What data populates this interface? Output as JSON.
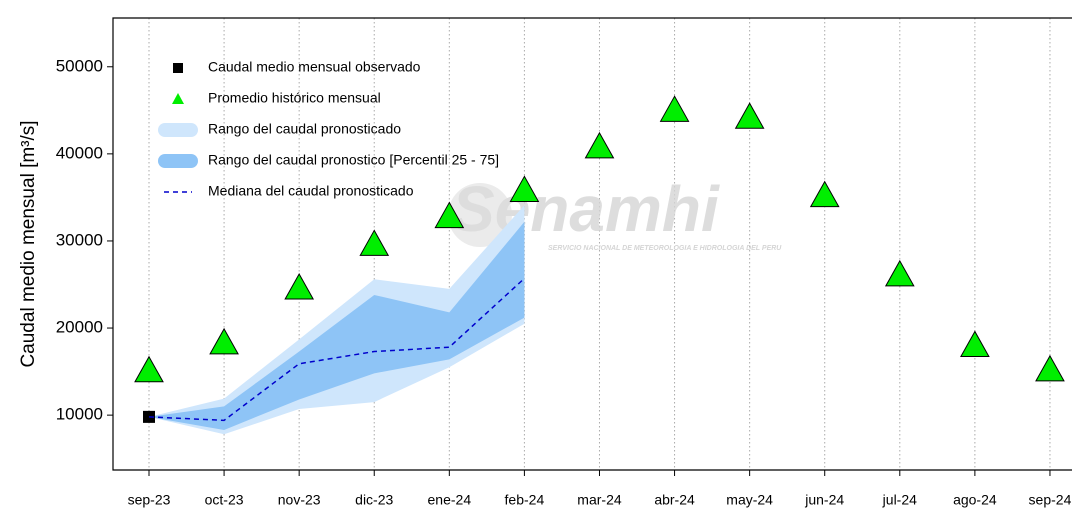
{
  "chart_data": {
    "type": "forecast",
    "ylabel": "Caudal medio mensual  [m³/s]",
    "watermark": "Senamhi",
    "watermark_sub": "SERVICIO NACIONAL DE METEOROLOGIA E HIDROLOGIA DEL PERU",
    "categories": [
      "sep-23",
      "oct-23",
      "nov-23",
      "dic-23",
      "ene-24",
      "feb-24",
      "mar-24",
      "abr-24",
      "may-24",
      "jun-24",
      "jul-24",
      "ago-24",
      "sep-24"
    ],
    "ylim": [
      3700,
      55600
    ],
    "yticks": [
      10000,
      20000,
      30000,
      40000,
      50000
    ],
    "grid": true,
    "bands": [
      {
        "name": "Rango del caudal pronosticado",
        "color": "#cfe6fc",
        "lower": [
          9800,
          7800,
          10700,
          11500,
          15500,
          20500,
          null,
          null,
          null,
          null,
          null,
          null,
          null
        ],
        "upper": [
          9800,
          11900,
          18700,
          25600,
          24500,
          34100,
          null,
          null,
          null,
          null,
          null,
          null,
          null
        ]
      },
      {
        "name": "Rango del caudal pronostico [Percentil 25 - 75]",
        "color": "#8ec4f6",
        "lower": [
          9800,
          8300,
          11800,
          14800,
          16400,
          21200,
          null,
          null,
          null,
          null,
          null,
          null,
          null
        ],
        "upper": [
          9800,
          11000,
          17300,
          23800,
          21800,
          32200,
          null,
          null,
          null,
          null,
          null,
          null,
          null
        ]
      }
    ],
    "series": [
      {
        "name": "Caudal medio mensual observado",
        "color": "#000000",
        "marker": "square",
        "values": [
          9800,
          null,
          null,
          null,
          null,
          null,
          null,
          null,
          null,
          null,
          null,
          null,
          null
        ]
      },
      {
        "name": "Promedio histórico mensual",
        "color": "#00ee00",
        "marker": "triangle",
        "values": [
          15100,
          18300,
          24600,
          29600,
          32800,
          35800,
          40800,
          45000,
          44200,
          35200,
          26100,
          18000,
          15200
        ]
      },
      {
        "name": "Mediana del caudal pronosticado",
        "color": "#0000cc",
        "marker": "dashed",
        "values": [
          9800,
          9400,
          15900,
          17300,
          17800,
          25700,
          null,
          null,
          null,
          null,
          null,
          null,
          null
        ]
      }
    ]
  }
}
